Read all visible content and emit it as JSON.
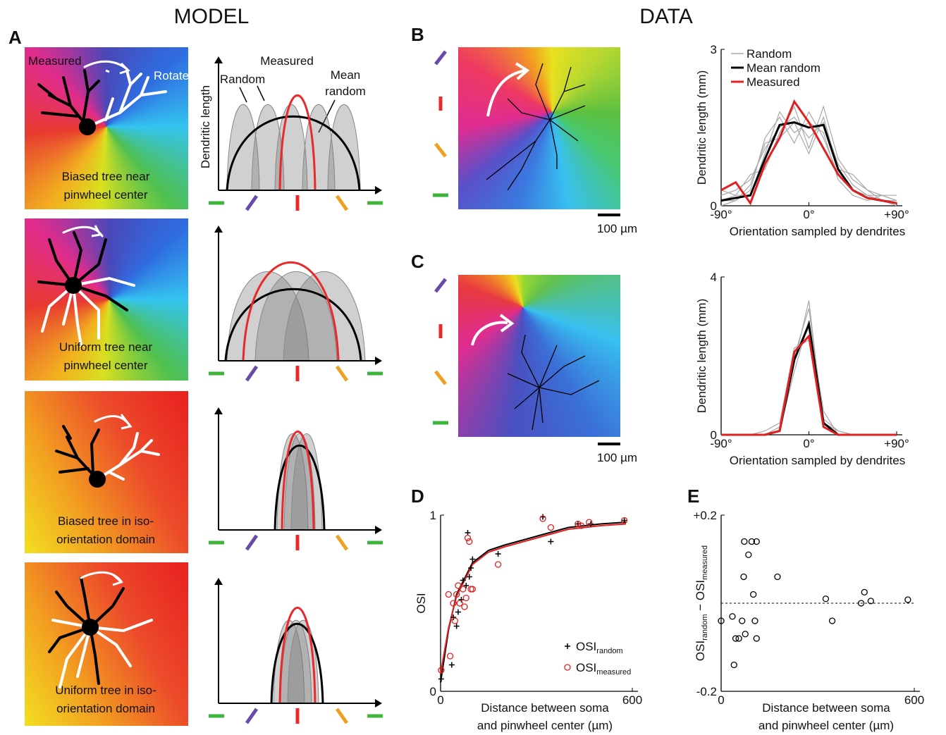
{
  "header": {
    "model": "MODEL",
    "data": "DATA"
  },
  "panel_letters": [
    "A",
    "B",
    "C",
    "D",
    "E"
  ],
  "model": {
    "rows": [
      {
        "caption_lines": [
          "Biased tree near",
          "pinwheel center"
        ]
      },
      {
        "caption_lines": [
          "Uniform tree near",
          "pinwheel center"
        ]
      },
      {
        "caption_lines": [
          "Biased tree in iso-",
          "orientation domain"
        ]
      },
      {
        "caption_lines": [
          "Uniform tree in iso-",
          "orientation domain"
        ]
      }
    ],
    "annotations": {
      "measured_tree": "Measured",
      "rotated_tree": "Rotated",
      "random": "Random",
      "measured_curve": "Measured",
      "mean_random": [
        "Mean",
        "random"
      ],
      "y_label": "Dendritic length"
    }
  },
  "maps": {
    "scale_bars": [
      "100 µm",
      "100 µm"
    ]
  },
  "chart_data": [
    {
      "type": "line",
      "x_label": "Orientation sampled by dendrites",
      "y_label": "Dendritic length (mm)",
      "legend": true,
      "x": [
        -90,
        -75,
        -60,
        -45,
        -30,
        -15,
        0,
        15,
        30,
        45,
        60,
        75,
        90
      ],
      "xlim": [
        -90,
        90
      ],
      "xticks": [
        {
          "value": -90,
          "label": "-90°"
        },
        {
          "value": 0,
          "label": "0°"
        },
        {
          "value": 90,
          "label": "+90°"
        }
      ],
      "ylim": [
        0,
        3
      ],
      "yticks": [
        0,
        3
      ],
      "series": [
        {
          "name": "Random",
          "color": "#a8a8a8",
          "lines": [
            [
              0.2,
              0.3,
              0.5,
              1.1,
              1.5,
              1.7,
              1.3,
              1.6,
              0.8,
              0.4,
              0.2,
              0.1,
              0.1
            ],
            [
              0.1,
              0.1,
              0.3,
              1.3,
              1.7,
              1.2,
              1.8,
              1.3,
              0.6,
              0.3,
              0.2,
              0.2,
              0.1
            ],
            [
              0.3,
              0.2,
              0.6,
              0.7,
              1.4,
              1.9,
              1.1,
              1.9,
              0.9,
              0.5,
              0.3,
              0.1,
              0.0
            ],
            [
              0.1,
              0.2,
              0.2,
              1.0,
              1.8,
              1.4,
              1.6,
              1.4,
              0.5,
              0.2,
              0.1,
              0.2,
              0.2
            ],
            [
              0.0,
              0.1,
              0.4,
              1.2,
              1.3,
              1.6,
              1.0,
              1.7,
              0.7,
              0.6,
              0.3,
              0.2,
              0.1
            ]
          ]
        },
        {
          "name": "Mean random",
          "color": "#000000",
          "values": [
            0.1,
            0.15,
            0.2,
            0.9,
            1.55,
            1.6,
            1.5,
            1.55,
            0.7,
            0.3,
            0.15,
            0.1,
            0.05
          ]
        },
        {
          "name": "Measured",
          "color": "#e02020",
          "values": [
            0.3,
            0.45,
            0.05,
            0.8,
            1.3,
            2.0,
            1.6,
            1.1,
            0.6,
            0.3,
            0.15,
            0.1,
            0.05
          ]
        }
      ]
    },
    {
      "type": "line",
      "x_label": "Orientation sampled by dendrites",
      "y_label": "Dendritic length (mm)",
      "legend": false,
      "x": [
        -90,
        -75,
        -60,
        -45,
        -30,
        -15,
        0,
        15,
        30,
        45,
        60,
        75,
        90
      ],
      "xlim": [
        -90,
        90
      ],
      "xticks": [
        {
          "value": -90,
          "label": "-90°"
        },
        {
          "value": 0,
          "label": "0°"
        },
        {
          "value": 90,
          "label": "+90°"
        }
      ],
      "ylim": [
        0,
        4
      ],
      "yticks": [
        0,
        4
      ],
      "series": [
        {
          "name": "Random",
          "color": "#a8a8a8",
          "lines": [
            [
              0,
              0,
              0,
              0,
              0.2,
              2.0,
              3.2,
              0.4,
              0.1,
              0,
              0,
              0,
              0
            ],
            [
              0,
              0,
              0,
              0,
              0.1,
              1.6,
              2.9,
              0.6,
              0,
              0,
              0,
              0,
              0
            ],
            [
              0,
              0,
              0,
              0.1,
              0.3,
              2.2,
              2.4,
              0.3,
              0.1,
              0,
              0,
              0,
              0
            ],
            [
              0,
              0,
              0,
              0,
              0.1,
              1.8,
              3.4,
              0.2,
              0,
              0,
              0,
              0,
              0
            ]
          ]
        },
        {
          "name": "Mean random",
          "color": "#000000",
          "values": [
            0,
            0,
            0,
            0,
            0.1,
            1.9,
            2.8,
            0.3,
            0,
            0,
            0,
            0,
            0
          ]
        },
        {
          "name": "Measured",
          "color": "#e02020",
          "values": [
            0,
            0,
            0,
            0,
            0.1,
            2.1,
            2.5,
            0.2,
            0,
            0,
            0,
            0,
            0
          ]
        }
      ]
    },
    {
      "type": "scatter",
      "x_label_lines": [
        "Distance between soma",
        "and pinwheel center (µm)"
      ],
      "y_label": "OSI",
      "xlim": [
        0,
        600
      ],
      "xticks": [
        0,
        600
      ],
      "ylim": [
        0,
        1
      ],
      "yticks": [
        0,
        1
      ],
      "legend": true,
      "series": [
        {
          "name": "OSI",
          "name_sub": "random",
          "marker": "plus",
          "color": "#000000",
          "x": [
            2,
            35,
            40,
            50,
            55,
            65,
            70,
            80,
            85,
            90,
            95,
            100,
            180,
            320,
            345,
            430,
            470,
            575
          ],
          "y": [
            0.07,
            0.15,
            0.42,
            0.37,
            0.45,
            0.52,
            0.63,
            0.6,
            0.9,
            0.65,
            0.7,
            0.75,
            0.78,
            0.99,
            0.85,
            0.95,
            0.95,
            0.97
          ]
        },
        {
          "name": "OSI",
          "name_sub": "measured",
          "marker": "circle",
          "color": "#e02020",
          "x": [
            2,
            30,
            25,
            40,
            45,
            50,
            55,
            60,
            70,
            75,
            80,
            85,
            90,
            95,
            100,
            180,
            320,
            345,
            430,
            440,
            465,
            575
          ],
          "y": [
            0.12,
            0.2,
            0.55,
            0.5,
            0.4,
            0.55,
            0.6,
            0.5,
            0.58,
            0.48,
            0.53,
            0.87,
            0.85,
            0.58,
            0.58,
            0.72,
            0.98,
            0.93,
            0.95,
            0.94,
            0.96,
            0.97
          ]
        }
      ],
      "fits": [
        {
          "color": "#000000",
          "x": [
            0,
            25,
            50,
            100,
            150,
            200,
            300,
            400,
            500,
            580
          ],
          "y": [
            0.05,
            0.35,
            0.55,
            0.73,
            0.8,
            0.83,
            0.88,
            0.93,
            0.95,
            0.96
          ]
        },
        {
          "color": "#e02020",
          "x": [
            0,
            25,
            50,
            100,
            150,
            200,
            300,
            400,
            500,
            580
          ],
          "y": [
            0.1,
            0.36,
            0.54,
            0.72,
            0.79,
            0.82,
            0.87,
            0.92,
            0.94,
            0.95
          ]
        }
      ]
    },
    {
      "type": "scatter",
      "x_label_lines": [
        "Distance between soma",
        "and pinwheel center (µm)"
      ],
      "y_label_parts": [
        "OSI",
        "random",
        " − OSI",
        "measured"
      ],
      "xlim": [
        0,
        600
      ],
      "xticks": [
        0,
        600
      ],
      "ylim": [
        -0.2,
        0.2
      ],
      "yticks": [
        {
          "value": -0.2,
          "label": "-0.2"
        },
        {
          "value": 0.2,
          "label": "+0.2"
        }
      ],
      "hline": 0,
      "legend": false,
      "series": [
        {
          "marker": "circle",
          "color": "#000000",
          "x": [
            0,
            35,
            40,
            45,
            55,
            65,
            70,
            72,
            75,
            85,
            95,
            100,
            105,
            110,
            110,
            175,
            325,
            345,
            435,
            445,
            465,
            580
          ],
          "y": [
            -0.04,
            -0.03,
            -0.14,
            -0.08,
            -0.08,
            -0.04,
            0.06,
            0.14,
            -0.07,
            0.11,
            0.14,
            0.02,
            -0.04,
            -0.08,
            0.14,
            0.06,
            0.01,
            -0.04,
            0.0,
            0.025,
            0.005,
            0.008
          ]
        }
      ]
    }
  ]
}
